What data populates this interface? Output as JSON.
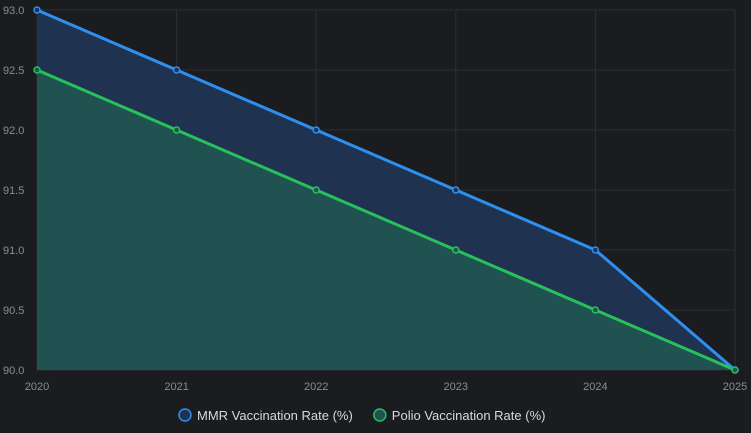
{
  "chart_data": {
    "type": "area",
    "title": "",
    "xlabel": "",
    "ylabel": "",
    "categories": [
      "2020",
      "2021",
      "2022",
      "2023",
      "2024",
      "2025"
    ],
    "ylim": [
      90.0,
      93.0
    ],
    "yticks": [
      "90.0",
      "90.5",
      "91.0",
      "91.5",
      "92.0",
      "92.5",
      "93.0"
    ],
    "grid": true,
    "legend_position": "bottom",
    "series": [
      {
        "name": "MMR Vaccination Rate (%)",
        "values": [
          93.0,
          92.5,
          92.0,
          91.5,
          91.0,
          90.0
        ],
        "color": "#2f8ff0",
        "fill": "#1f3350"
      },
      {
        "name": "Polio Vaccination Rate (%)",
        "values": [
          92.5,
          92.0,
          91.5,
          91.0,
          90.5,
          90.0
        ],
        "color": "#27c05b",
        "fill": "#1f5250"
      }
    ]
  }
}
